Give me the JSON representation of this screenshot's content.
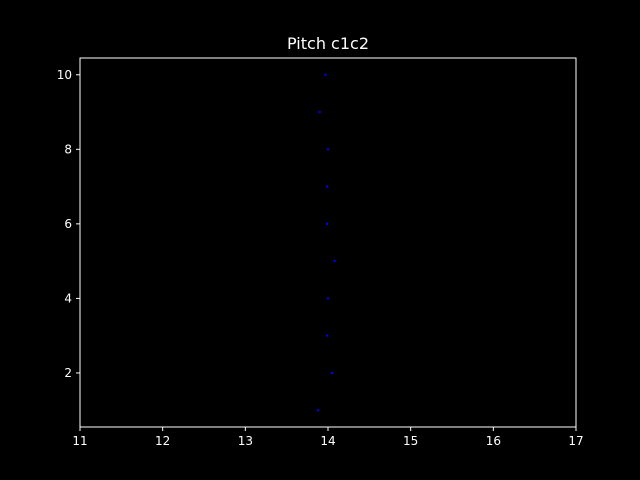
{
  "colors": {
    "background": "#000000",
    "axes": "#ffffff",
    "text": "#ffffff",
    "marker": "#0000ff"
  },
  "chart_data": {
    "type": "scatter",
    "title": "Pitch c1c2",
    "xlabel": "",
    "ylabel": "",
    "xlim": [
      11,
      17
    ],
    "ylim": [
      0.55,
      10.45
    ],
    "xticks": [
      11,
      12,
      13,
      14,
      15,
      16,
      17
    ],
    "yticks": [
      2,
      4,
      6,
      8,
      10
    ],
    "xtick_labels": [
      "11",
      "12",
      "13",
      "14",
      "15",
      "16",
      "17"
    ],
    "ytick_labels": [
      "2",
      "4",
      "6",
      "8",
      "10"
    ],
    "grid": false,
    "series": [
      {
        "x": [
          13.88,
          14.05,
          13.99,
          14.0,
          14.08,
          13.99,
          13.99,
          14.0,
          13.9,
          13.97
        ],
        "y": [
          1,
          2,
          3,
          4,
          5,
          6,
          7,
          8,
          9,
          10
        ]
      }
    ]
  }
}
